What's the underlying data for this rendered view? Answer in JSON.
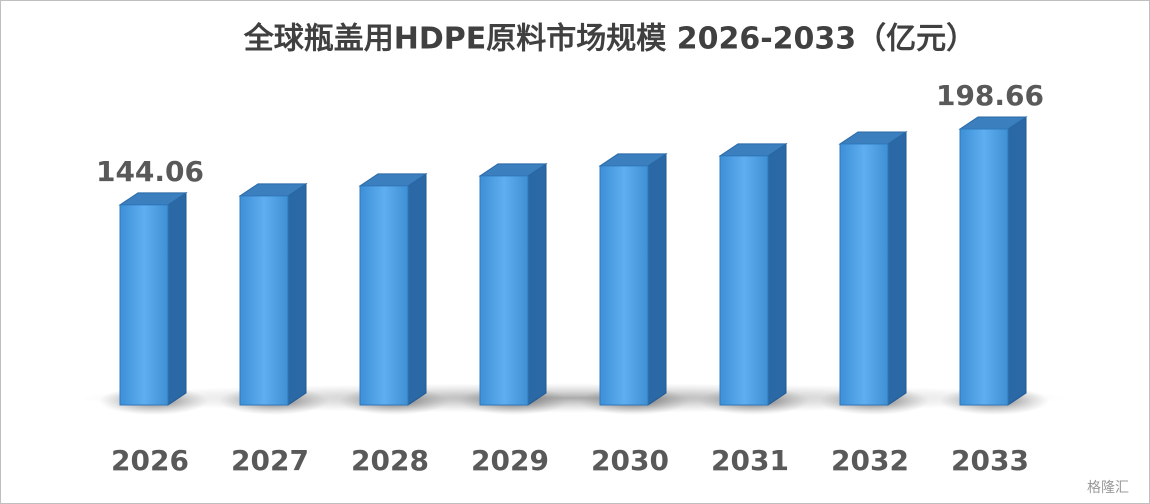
{
  "chart_data": {
    "type": "bar3d",
    "title": "全球瓶盖用HDPE原料市场规模 2026-2033（亿元）",
    "categories": [
      "2026",
      "2027",
      "2028",
      "2029",
      "2030",
      "2031",
      "2032",
      "2033"
    ],
    "values": [
      144.06,
      150.5,
      157.7,
      164.9,
      172.1,
      179.3,
      187.9,
      198.66
    ],
    "value_labels": [
      "144.06",
      null,
      null,
      null,
      null,
      null,
      null,
      "198.66"
    ],
    "color": "#4a9fe2",
    "watermark": "格隆汇"
  }
}
